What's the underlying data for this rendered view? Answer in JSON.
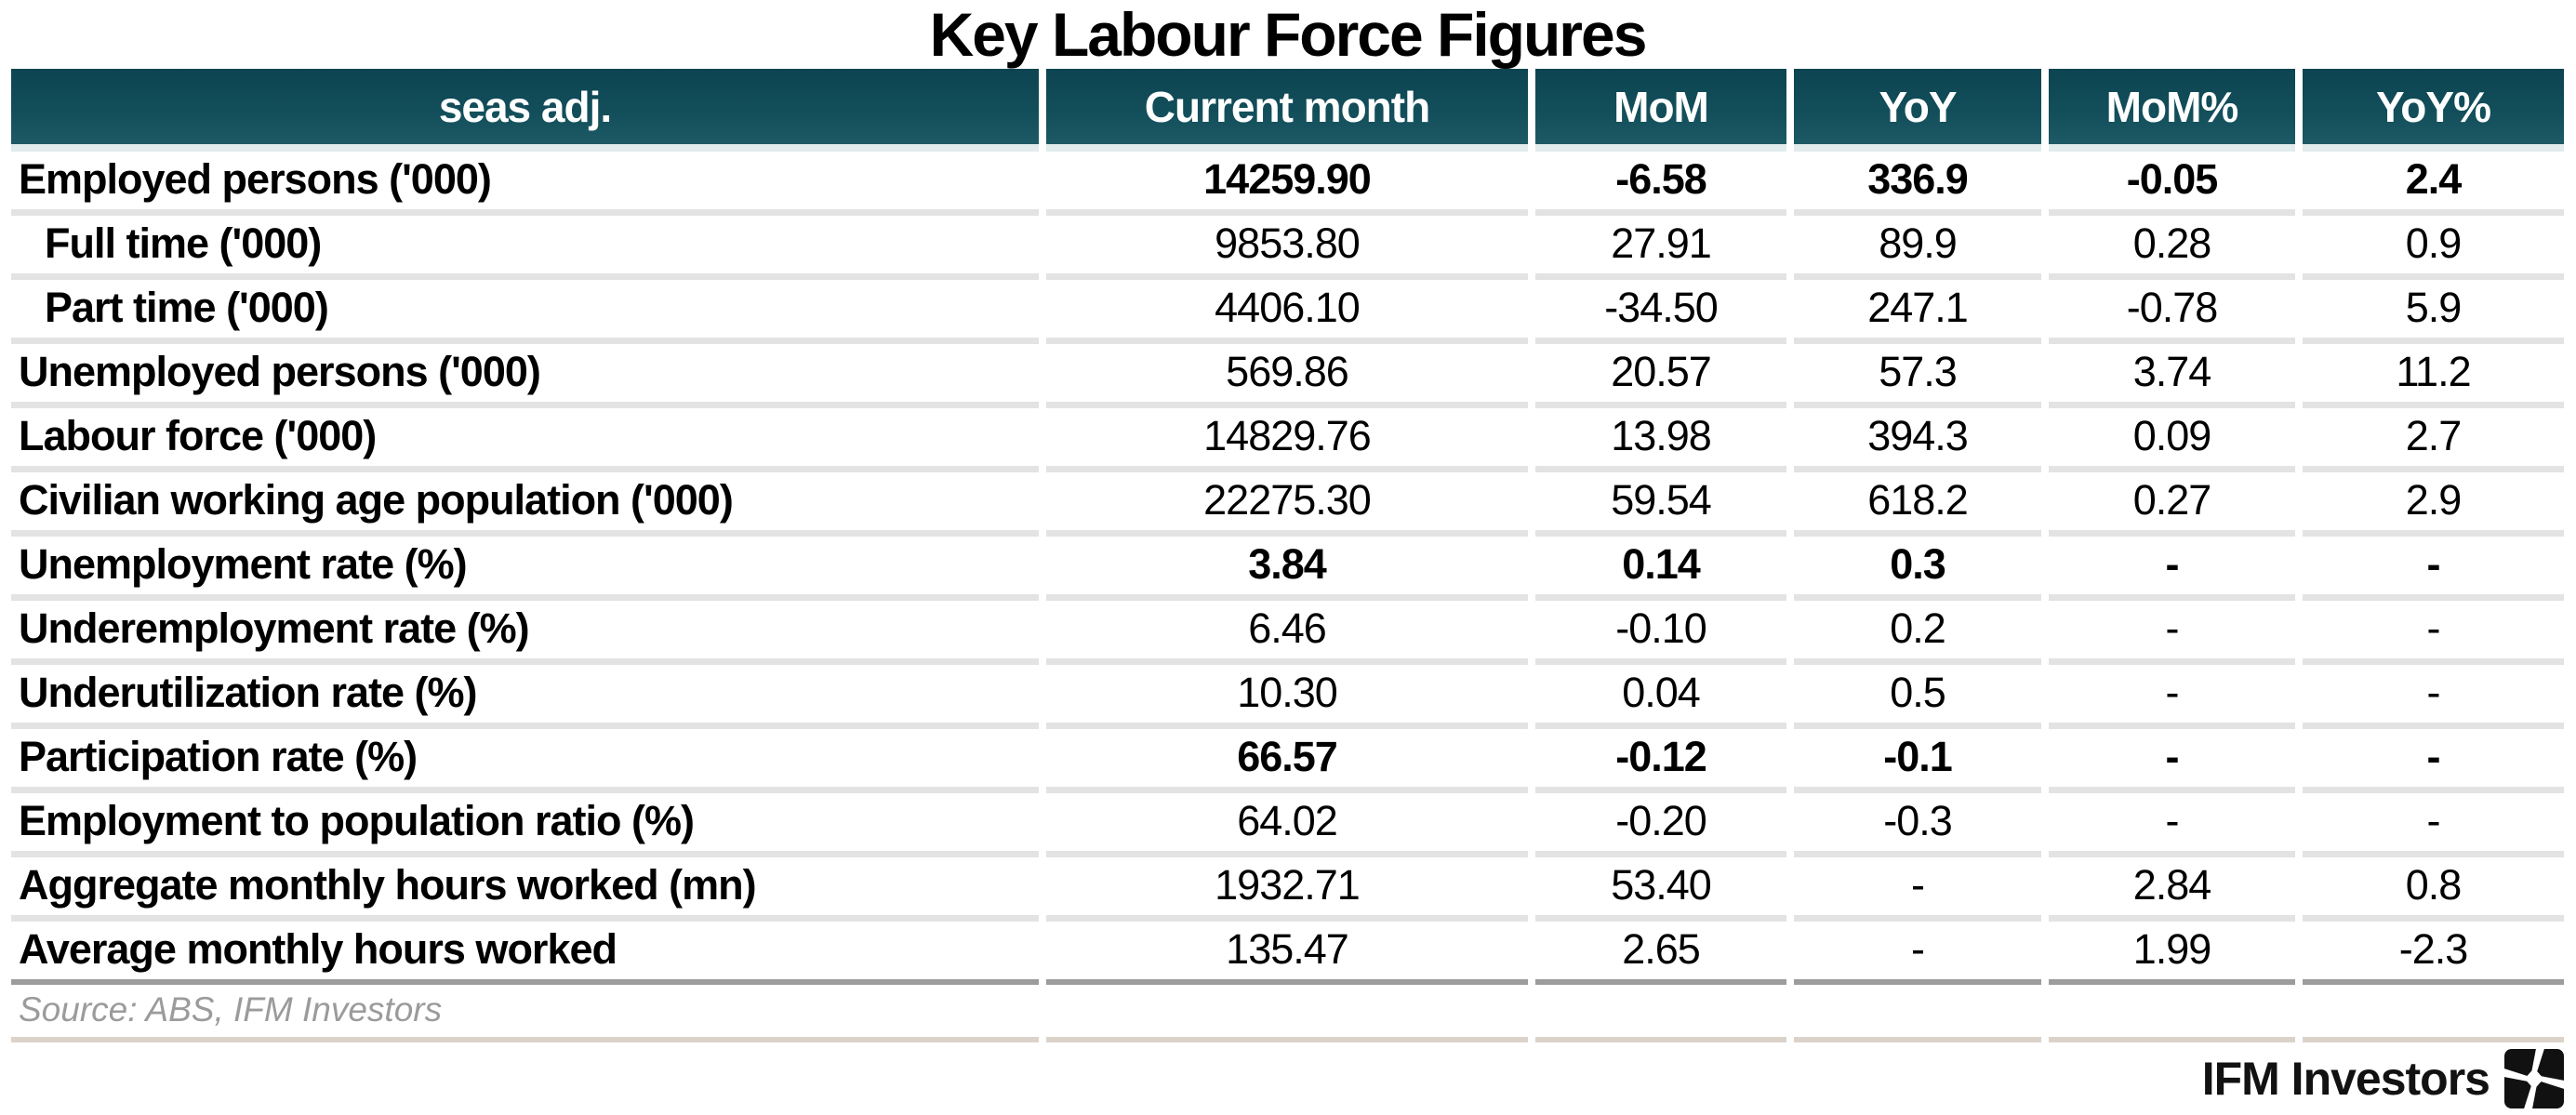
{
  "title_note": "standalone statistics table figure",
  "chart_data": {
    "type": "table",
    "title": "Key Labour Force Figures",
    "columns": [
      "seas adj.",
      "Current month",
      "MoM",
      "YoY",
      "MoM%",
      "YoY%"
    ],
    "rows": [
      {
        "label": "Employed persons ('000)",
        "indent": false,
        "bold": true,
        "values": [
          "14259.90",
          "-6.58",
          "336.9",
          "-0.05",
          "2.4"
        ]
      },
      {
        "label": "Full time ('000)",
        "indent": true,
        "bold": false,
        "values": [
          "9853.80",
          "27.91",
          "89.9",
          "0.28",
          "0.9"
        ]
      },
      {
        "label": "Part time ('000)",
        "indent": true,
        "bold": false,
        "values": [
          "4406.10",
          "-34.50",
          "247.1",
          "-0.78",
          "5.9"
        ]
      },
      {
        "label": "Unemployed persons ('000)",
        "indent": false,
        "bold": false,
        "values": [
          "569.86",
          "20.57",
          "57.3",
          "3.74",
          "11.2"
        ]
      },
      {
        "label": "Labour force ('000)",
        "indent": false,
        "bold": false,
        "values": [
          "14829.76",
          "13.98",
          "394.3",
          "0.09",
          "2.7"
        ]
      },
      {
        "label": "Civilian working age population ('000)",
        "indent": false,
        "bold": false,
        "values": [
          "22275.30",
          "59.54",
          "618.2",
          "0.27",
          "2.9"
        ]
      },
      {
        "label": "Unemployment rate (%)",
        "indent": false,
        "bold": true,
        "values": [
          "3.84",
          "0.14",
          "0.3",
          "-",
          "-"
        ]
      },
      {
        "label": "Underemployment rate (%)",
        "indent": false,
        "bold": false,
        "values": [
          "6.46",
          "-0.10",
          "0.2",
          "-",
          "-"
        ]
      },
      {
        "label": "Underutilization rate (%)",
        "indent": false,
        "bold": false,
        "values": [
          "10.30",
          "0.04",
          "0.5",
          "-",
          "-"
        ]
      },
      {
        "label": "Participation rate (%)",
        "indent": false,
        "bold": true,
        "values": [
          "66.57",
          "-0.12",
          "-0.1",
          "-",
          "-"
        ]
      },
      {
        "label": "Employment to population ratio (%)",
        "indent": false,
        "bold": false,
        "values": [
          "64.02",
          "-0.20",
          "-0.3",
          "-",
          "-"
        ]
      },
      {
        "label": "Aggregate monthly hours worked (mn)",
        "indent": false,
        "bold": false,
        "values": [
          "1932.71",
          "53.40",
          "-",
          "2.84",
          "0.8"
        ]
      },
      {
        "label": "Average monthly hours worked",
        "indent": false,
        "bold": false,
        "values": [
          "135.47",
          "2.65",
          "-",
          "1.99",
          "-2.3"
        ]
      }
    ],
    "source": "Source: ABS, IFM Investors",
    "layout": {
      "value_alignment": "center",
      "label_alignment": "left",
      "header_position": "top"
    }
  },
  "branding": {
    "logo_text": "IFM Investors",
    "logo_icon": "ifm-pinwheel-icon"
  },
  "colors": {
    "header_bg": "#124E5A",
    "header_text": "#FFFFFF",
    "row_separator": "#E3E3E3",
    "table_bottom_separator": "#9C9C9C",
    "source_separator": "#DBD3CA",
    "source_text": "#9B9B9B",
    "body_text": "#000000"
  }
}
